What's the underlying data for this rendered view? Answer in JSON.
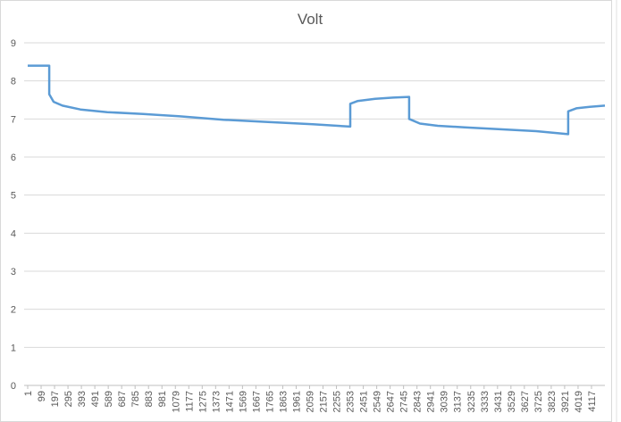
{
  "chart_data": {
    "type": "line",
    "title": "Volt",
    "color": "#5b9bd5",
    "grid": true,
    "x": [
      1,
      158,
      158,
      190,
      255,
      386,
      582,
      843,
      1103,
      1430,
      1756,
      2082,
      2356,
      2356,
      2408,
      2538,
      2669,
      2786,
      2786,
      2865,
      2995,
      3191,
      3452,
      3713,
      3947,
      3947,
      4006,
      4104,
      4215
    ],
    "values": [
      8.4,
      8.4,
      7.65,
      7.45,
      7.35,
      7.25,
      7.18,
      7.13,
      7.07,
      6.98,
      6.92,
      6.86,
      6.8,
      7.4,
      7.47,
      7.53,
      7.56,
      7.58,
      7.0,
      6.88,
      6.82,
      6.78,
      6.73,
      6.68,
      6.6,
      7.2,
      7.28,
      7.32,
      7.35
    ],
    "xlim": [
      1,
      4215
    ],
    "xticks": [
      1,
      99,
      197,
      295,
      393,
      491,
      589,
      687,
      785,
      883,
      981,
      1079,
      1177,
      1275,
      1373,
      1471,
      1569,
      1667,
      1765,
      1863,
      1961,
      2059,
      2157,
      2255,
      2353,
      2451,
      2549,
      2647,
      2745,
      2843,
      2941,
      3039,
      3137,
      3235,
      3333,
      3431,
      3529,
      3627,
      3725,
      3823,
      3921,
      4019,
      4117
    ],
    "ylim": [
      0,
      9
    ],
    "yticks": [
      0,
      1,
      2,
      3,
      4,
      5,
      6,
      7,
      8,
      9
    ]
  }
}
